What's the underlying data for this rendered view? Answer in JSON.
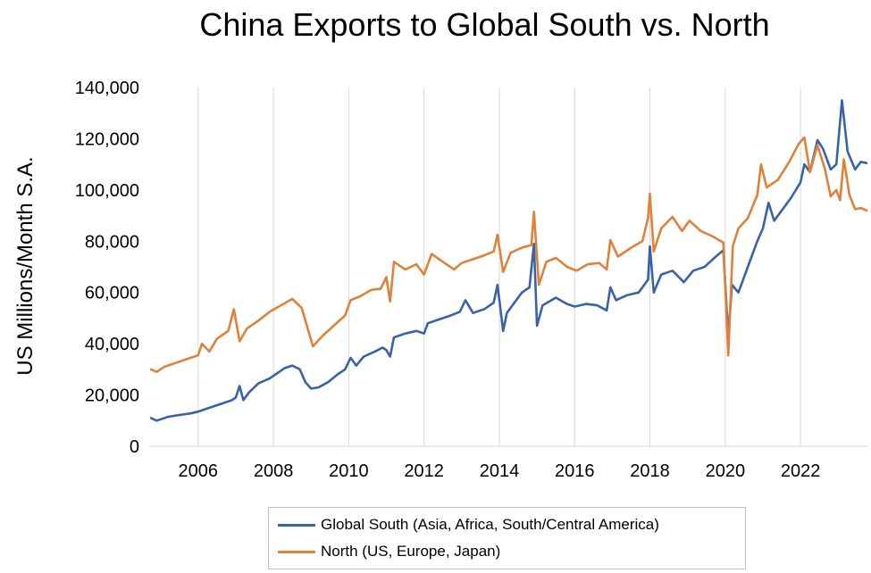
{
  "chart_data": {
    "type": "line",
    "title": "China Exports to Global South vs. North",
    "xlabel": "",
    "ylabel": "US Millions/Month S.A.",
    "xlim": [
      2004.7,
      2023.8
    ],
    "ylim": [
      0,
      140000
    ],
    "x_ticks": [
      2006,
      2008,
      2010,
      2012,
      2014,
      2016,
      2018,
      2020,
      2022
    ],
    "x_tick_labels": [
      "2006",
      "2008",
      "2010",
      "2012",
      "2014",
      "2016",
      "2018",
      "2020",
      "2022"
    ],
    "y_ticks": [
      0,
      20000,
      40000,
      60000,
      80000,
      100000,
      120000,
      140000
    ],
    "y_tick_labels": [
      "0",
      "20,000",
      "40,000",
      "60,000",
      "80,000",
      "100,000",
      "120,000",
      "140,000"
    ],
    "grid": "vertical",
    "legend_position": "bottom",
    "series": [
      {
        "name": "Global South (Asia, Africa, South/Central America)",
        "color": "#3a62a8",
        "points": [
          [
            2004.75,
            11000
          ],
          [
            2004.9,
            10000
          ],
          [
            2005.2,
            11500
          ],
          [
            2005.5,
            12200
          ],
          [
            2005.8,
            12800
          ],
          [
            2006.0,
            13500
          ],
          [
            2006.3,
            15000
          ],
          [
            2006.6,
            16500
          ],
          [
            2006.9,
            18000
          ],
          [
            2007.0,
            19000
          ],
          [
            2007.1,
            23500
          ],
          [
            2007.2,
            18000
          ],
          [
            2007.35,
            21000
          ],
          [
            2007.6,
            24500
          ],
          [
            2007.9,
            26500
          ],
          [
            2008.1,
            28500
          ],
          [
            2008.3,
            30500
          ],
          [
            2008.5,
            31500
          ],
          [
            2008.7,
            30000
          ],
          [
            2008.85,
            25000
          ],
          [
            2009.0,
            22500
          ],
          [
            2009.2,
            23000
          ],
          [
            2009.45,
            25000
          ],
          [
            2009.7,
            28000
          ],
          [
            2009.9,
            30000
          ],
          [
            2010.05,
            34500
          ],
          [
            2010.2,
            31500
          ],
          [
            2010.4,
            35000
          ],
          [
            2010.7,
            37000
          ],
          [
            2010.9,
            38500
          ],
          [
            2011.0,
            37500
          ],
          [
            2011.1,
            35000
          ],
          [
            2011.2,
            42500
          ],
          [
            2011.5,
            44000
          ],
          [
            2011.8,
            45000
          ],
          [
            2012.0,
            44000
          ],
          [
            2012.1,
            48000
          ],
          [
            2012.4,
            49500
          ],
          [
            2012.7,
            51000
          ],
          [
            2012.95,
            52500
          ],
          [
            2013.1,
            57000
          ],
          [
            2013.3,
            52000
          ],
          [
            2013.6,
            53500
          ],
          [
            2013.85,
            56000
          ],
          [
            2013.95,
            63000
          ],
          [
            2014.1,
            45000
          ],
          [
            2014.2,
            52000
          ],
          [
            2014.4,
            56000
          ],
          [
            2014.6,
            60000
          ],
          [
            2014.8,
            62000
          ],
          [
            2014.92,
            79000
          ],
          [
            2015.0,
            47000
          ],
          [
            2015.15,
            55000
          ],
          [
            2015.5,
            58000
          ],
          [
            2015.8,
            55500
          ],
          [
            2016.0,
            54500
          ],
          [
            2016.3,
            55500
          ],
          [
            2016.6,
            55000
          ],
          [
            2016.85,
            53000
          ],
          [
            2016.95,
            62000
          ],
          [
            2017.1,
            57000
          ],
          [
            2017.4,
            59000
          ],
          [
            2017.7,
            60000
          ],
          [
            2017.95,
            65000
          ],
          [
            2018.0,
            78000
          ],
          [
            2018.1,
            60000
          ],
          [
            2018.3,
            67000
          ],
          [
            2018.6,
            68500
          ],
          [
            2018.9,
            64000
          ],
          [
            2019.15,
            68500
          ],
          [
            2019.45,
            70000
          ],
          [
            2019.75,
            74000
          ],
          [
            2019.95,
            76500
          ],
          [
            2020.08,
            43000
          ],
          [
            2020.18,
            63000
          ],
          [
            2020.35,
            60000
          ],
          [
            2020.6,
            70000
          ],
          [
            2020.85,
            80000
          ],
          [
            2021.0,
            85000
          ],
          [
            2021.15,
            95000
          ],
          [
            2021.3,
            88000
          ],
          [
            2021.5,
            92000
          ],
          [
            2021.75,
            97000
          ],
          [
            2022.0,
            103000
          ],
          [
            2022.1,
            110000
          ],
          [
            2022.25,
            107000
          ],
          [
            2022.45,
            119500
          ],
          [
            2022.6,
            116000
          ],
          [
            2022.8,
            108000
          ],
          [
            2022.95,
            110000
          ],
          [
            2023.1,
            135000
          ],
          [
            2023.25,
            115000
          ],
          [
            2023.45,
            108000
          ],
          [
            2023.6,
            111000
          ],
          [
            2023.75,
            110500
          ]
        ]
      },
      {
        "name": "North (US, Europe, Japan)",
        "color": "#e0813a",
        "points": [
          [
            2004.75,
            30000
          ],
          [
            2004.9,
            29000
          ],
          [
            2005.1,
            31000
          ],
          [
            2005.4,
            32500
          ],
          [
            2005.7,
            34000
          ],
          [
            2006.0,
            35500
          ],
          [
            2006.1,
            40000
          ],
          [
            2006.3,
            37000
          ],
          [
            2006.5,
            42000
          ],
          [
            2006.8,
            45000
          ],
          [
            2006.95,
            53500
          ],
          [
            2007.1,
            41000
          ],
          [
            2007.3,
            46000
          ],
          [
            2007.6,
            49000
          ],
          [
            2007.9,
            52500
          ],
          [
            2008.2,
            55000
          ],
          [
            2008.5,
            57500
          ],
          [
            2008.75,
            54000
          ],
          [
            2008.95,
            44000
          ],
          [
            2009.05,
            39000
          ],
          [
            2009.3,
            43000
          ],
          [
            2009.6,
            47000
          ],
          [
            2009.9,
            51000
          ],
          [
            2010.05,
            57000
          ],
          [
            2010.3,
            58500
          ],
          [
            2010.6,
            61000
          ],
          [
            2010.85,
            61500
          ],
          [
            2011.0,
            66000
          ],
          [
            2011.1,
            56500
          ],
          [
            2011.2,
            72000
          ],
          [
            2011.5,
            69000
          ],
          [
            2011.8,
            71000
          ],
          [
            2012.0,
            67000
          ],
          [
            2012.2,
            75000
          ],
          [
            2012.5,
            72000
          ],
          [
            2012.8,
            69000
          ],
          [
            2013.0,
            71500
          ],
          [
            2013.3,
            73000
          ],
          [
            2013.6,
            74500
          ],
          [
            2013.85,
            76000
          ],
          [
            2013.95,
            82500
          ],
          [
            2014.1,
            68000
          ],
          [
            2014.3,
            75500
          ],
          [
            2014.6,
            77500
          ],
          [
            2014.85,
            78500
          ],
          [
            2014.92,
            91500
          ],
          [
            2015.05,
            63000
          ],
          [
            2015.25,
            72000
          ],
          [
            2015.5,
            73500
          ],
          [
            2015.8,
            70000
          ],
          [
            2016.05,
            68500
          ],
          [
            2016.35,
            71000
          ],
          [
            2016.65,
            71500
          ],
          [
            2016.85,
            69000
          ],
          [
            2016.95,
            80500
          ],
          [
            2017.15,
            74000
          ],
          [
            2017.5,
            77500
          ],
          [
            2017.8,
            80000
          ],
          [
            2017.95,
            89000
          ],
          [
            2018.0,
            98500
          ],
          [
            2018.1,
            76000
          ],
          [
            2018.3,
            85000
          ],
          [
            2018.6,
            89500
          ],
          [
            2018.85,
            84000
          ],
          [
            2019.05,
            88000
          ],
          [
            2019.35,
            84000
          ],
          [
            2019.65,
            82000
          ],
          [
            2019.95,
            79500
          ],
          [
            2020.08,
            35500
          ],
          [
            2020.2,
            78000
          ],
          [
            2020.35,
            85000
          ],
          [
            2020.6,
            89000
          ],
          [
            2020.85,
            98000
          ],
          [
            2020.95,
            110000
          ],
          [
            2021.1,
            101000
          ],
          [
            2021.4,
            104000
          ],
          [
            2021.7,
            111000
          ],
          [
            2021.95,
            118000
          ],
          [
            2022.1,
            120500
          ],
          [
            2022.25,
            107000
          ],
          [
            2022.45,
            117500
          ],
          [
            2022.65,
            108000
          ],
          [
            2022.8,
            97500
          ],
          [
            2022.95,
            100000
          ],
          [
            2023.05,
            96000
          ],
          [
            2023.15,
            112000
          ],
          [
            2023.3,
            98000
          ],
          [
            2023.45,
            92500
          ],
          [
            2023.6,
            93000
          ],
          [
            2023.75,
            92000
          ]
        ]
      }
    ]
  }
}
